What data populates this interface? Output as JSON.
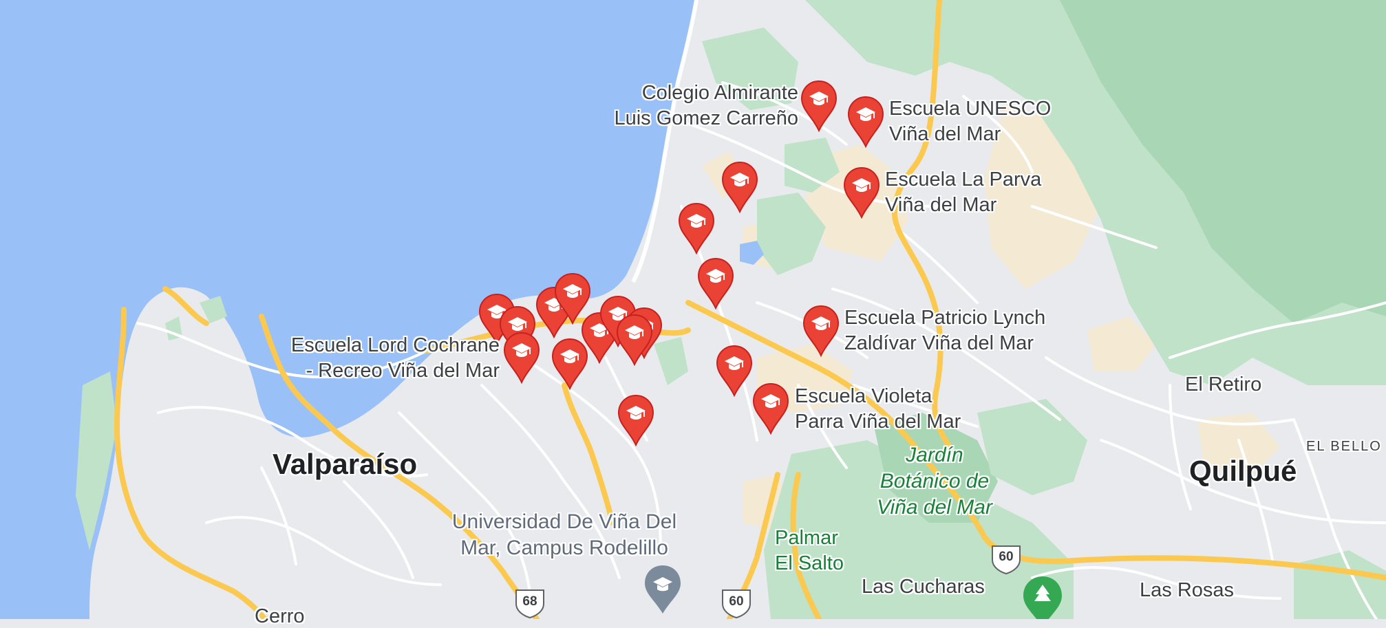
{
  "map": {
    "colors": {
      "water": "#9ac0f8",
      "land": "#e8eaed",
      "park": "#bfe2c8",
      "forest": "#a9d7b5",
      "urban_sand": "#f4ead3",
      "road_major": "#fbc94f",
      "road_minor": "#ffffff",
      "pin": "#ea4335",
      "pin_dark": "#c5221f"
    },
    "cities": {
      "valparaiso": "Valparaíso",
      "quilpue": "Quilpué"
    },
    "towns": {
      "el_retiro": "El Retiro",
      "el_bello": "EL BELLO",
      "las_cucharas": "Las Cucharas",
      "las_rosas": "Las Rosas",
      "cerro": "Cerro"
    },
    "schools": {
      "almirante_1": "Colegio Almirante",
      "almirante_2": "Luis Gomez Carreño",
      "unesco_1": "Escuela UNESCO",
      "unesco_2": "Viña del Mar",
      "laparva_1": "Escuela La Parva",
      "laparva_2": "Viña del Mar",
      "lynch_1": "Escuela Patricio Lynch",
      "lynch_2": "Zaldívar Viña del Mar",
      "cochrane_1": "Escuela Lord Cochrane",
      "cochrane_2": "- Recreo Viña del Mar",
      "violeta_1": "Escuela Violeta",
      "violeta_2": "Parra Viña del Mar"
    },
    "university": {
      "line1": "Universidad De Viña Del",
      "line2": "Mar, Campus Rodelillo"
    },
    "parks": {
      "jardin_1": "Jardín",
      "jardin_2": "Botánico de",
      "jardin_3": "Viña del Mar",
      "palmar_1": "Palmar",
      "palmar_2": "El Salto"
    },
    "routes": {
      "r68": "68",
      "r60a": "60",
      "r60b": "60"
    },
    "pins_icon": "graduation-cap-icon",
    "poi_icons": [
      "school-poi-icon",
      "park-tree-icon"
    ]
  }
}
